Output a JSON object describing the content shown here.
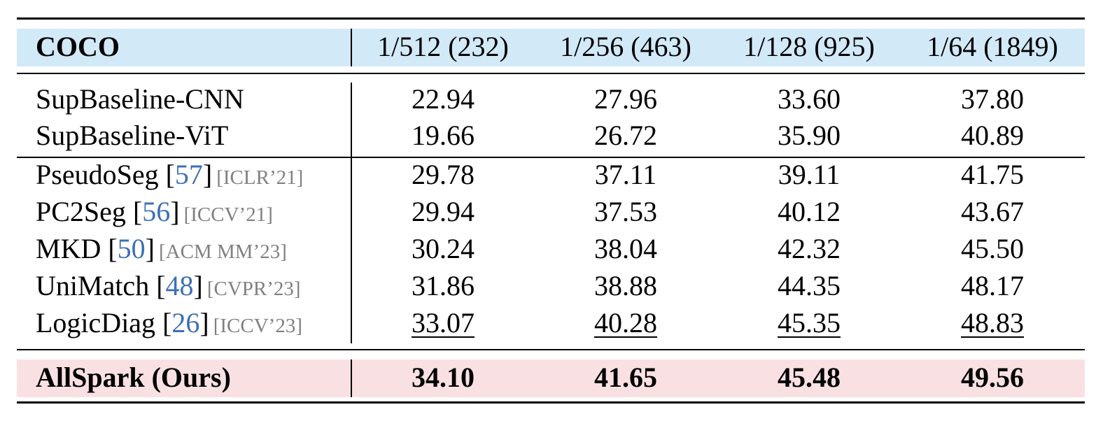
{
  "table": {
    "header": {
      "dataset": "COCO",
      "columns": [
        "1/512 (232)",
        "1/256 (463)",
        "1/128 (925)",
        "1/64 (1849)"
      ]
    },
    "baseline_rows": [
      {
        "method": "SupBaseline-CNN",
        "values": [
          "22.94",
          "27.96",
          "33.60",
          "37.80"
        ]
      },
      {
        "method": "SupBaseline-ViT",
        "values": [
          "19.66",
          "26.72",
          "35.90",
          "40.89"
        ]
      }
    ],
    "method_rows": [
      {
        "method": "PseudoSeg",
        "ref": "57",
        "venue": "[ICLR’21]",
        "values": [
          "29.78",
          "37.11",
          "39.11",
          "41.75"
        ]
      },
      {
        "method": "PC2Seg",
        "ref": "56",
        "venue": "[ICCV’21]",
        "values": [
          "29.94",
          "37.53",
          "40.12",
          "43.67"
        ]
      },
      {
        "method": "MKD",
        "ref": "50",
        "venue": "[ACM MM’23]",
        "values": [
          "30.24",
          "38.04",
          "42.32",
          "45.50"
        ]
      },
      {
        "method": "UniMatch",
        "ref": "48",
        "venue": "[CVPR’23]",
        "values": [
          "31.86",
          "38.88",
          "44.35",
          "48.17"
        ]
      },
      {
        "method": "LogicDiag",
        "ref": "26",
        "venue": "[ICCV’23]",
        "values": [
          "33.07",
          "40.28",
          "45.35",
          "48.83"
        ]
      }
    ],
    "ours_row": {
      "method": "AllSpark (Ours)",
      "values": [
        "34.10",
        "41.65",
        "45.48",
        "49.56"
      ]
    },
    "colors": {
      "header_band": "#d2e9f8",
      "ours_band": "#f9e1e3",
      "ref_link": "#3d6fb5",
      "venue_text": "#808080"
    }
  }
}
